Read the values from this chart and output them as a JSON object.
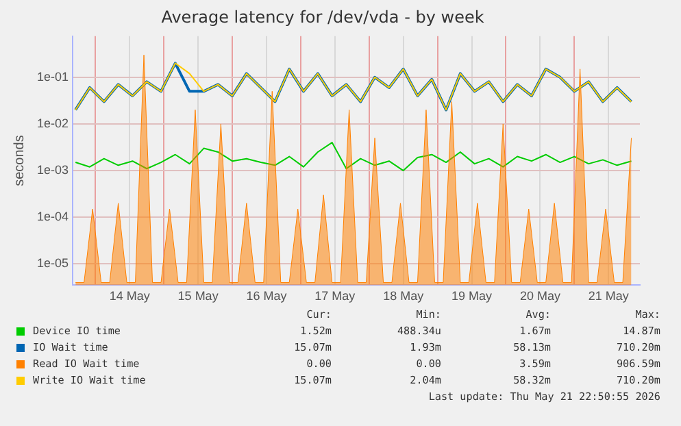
{
  "chart_data": {
    "type": "line",
    "title": "Average latency for /dev/vda - by week",
    "ylabel": "seconds",
    "log": "y",
    "grid": true,
    "legend": "bottom",
    "marker": "none",
    "line_style": "solid",
    "ylim": [
      3.5e-06,
      0.76
    ],
    "yticks": [
      {
        "value": 1e-05,
        "label": "1e-05"
      },
      {
        "value": 0.0001,
        "label": "1e-04"
      },
      {
        "value": 0.001,
        "label": "1e-03"
      },
      {
        "value": 0.01,
        "label": "1e-02"
      },
      {
        "value": 0.1,
        "label": "1e-01"
      }
    ],
    "xlim": [
      "2026-05-13T16:00",
      "2026-05-21T23:00"
    ],
    "xticks": [
      {
        "value": "2026-05-14T00:00",
        "label": null
      },
      {
        "value": "2026-05-14T12:00",
        "label": "14 May"
      },
      {
        "value": "2026-05-15T00:00",
        "label": null
      },
      {
        "value": "2026-05-15T12:00",
        "label": "15 May"
      },
      {
        "value": "2026-05-16T00:00",
        "label": null
      },
      {
        "value": "2026-05-16T12:00",
        "label": "16 May"
      },
      {
        "value": "2026-05-17T00:00",
        "label": null
      },
      {
        "value": "2026-05-17T12:00",
        "label": "17 May"
      },
      {
        "value": "2026-05-18T00:00",
        "label": null
      },
      {
        "value": "2026-05-18T12:00",
        "label": "18 May"
      },
      {
        "value": "2026-05-19T00:00",
        "label": null
      },
      {
        "value": "2026-05-19T12:00",
        "label": "19 May"
      },
      {
        "value": "2026-05-20T00:00",
        "label": null
      },
      {
        "value": "2026-05-20T12:00",
        "label": "20 May"
      },
      {
        "value": "2026-05-21T00:00",
        "label": null
      },
      {
        "value": "2026-05-21T12:00",
        "label": "21 May"
      }
    ],
    "x": [
      "2026-05-13T17:00",
      "2026-05-13T22:00",
      "2026-05-14T03:00",
      "2026-05-14T08:00",
      "2026-05-14T13:00",
      "2026-05-14T18:00",
      "2026-05-14T23:00",
      "2026-05-15T04:00",
      "2026-05-15T09:00",
      "2026-05-15T14:00",
      "2026-05-15T19:00",
      "2026-05-16T00:00",
      "2026-05-16T05:00",
      "2026-05-16T10:00",
      "2026-05-16T15:00",
      "2026-05-16T20:00",
      "2026-05-17T01:00",
      "2026-05-17T06:00",
      "2026-05-17T11:00",
      "2026-05-17T16:00",
      "2026-05-17T21:00",
      "2026-05-18T02:00",
      "2026-05-18T07:00",
      "2026-05-18T12:00",
      "2026-05-18T17:00",
      "2026-05-18T22:00",
      "2026-05-19T03:00",
      "2026-05-19T08:00",
      "2026-05-19T13:00",
      "2026-05-19T18:00",
      "2026-05-19T23:00",
      "2026-05-20T04:00",
      "2026-05-20T09:00",
      "2026-05-20T14:00",
      "2026-05-20T19:00",
      "2026-05-21T00:00",
      "2026-05-21T05:00",
      "2026-05-21T10:00",
      "2026-05-21T15:00",
      "2026-05-21T20:00"
    ],
    "series": [
      {
        "name": "Device IO time",
        "color": "#00cc00",
        "values": [
          0.0015,
          0.0012,
          0.0018,
          0.0013,
          0.0016,
          0.0011,
          0.0015,
          0.0022,
          0.0014,
          0.003,
          0.0025,
          0.0016,
          0.0018,
          0.0015,
          0.0013,
          0.002,
          0.0012,
          0.0025,
          0.004,
          0.0011,
          0.0018,
          0.0013,
          0.0016,
          0.001,
          0.0019,
          0.0022,
          0.0015,
          0.0025,
          0.0014,
          0.0018,
          0.0012,
          0.002,
          0.0016,
          0.0022,
          0.0015,
          0.002,
          0.0014,
          0.0017,
          0.0013,
          0.0016
        ]
      },
      {
        "name": "IO Wait time",
        "color": "#0066b3",
        "values": [
          0.02,
          0.06,
          0.03,
          0.07,
          0.04,
          0.08,
          0.05,
          0.2,
          0.05,
          0.05,
          0.07,
          0.04,
          0.12,
          0.06,
          0.03,
          0.15,
          0.05,
          0.12,
          0.04,
          0.07,
          0.03,
          0.1,
          0.06,
          0.15,
          0.04,
          0.09,
          0.02,
          0.12,
          0.05,
          0.08,
          0.03,
          0.07,
          0.04,
          0.15,
          0.1,
          0.05,
          0.08,
          0.03,
          0.06,
          0.03
        ]
      },
      {
        "name": "Read IO Wait time",
        "color": "#ff8000",
        "type": "area",
        "x": [
          "2026-05-13T17:00",
          "2026-05-13T20:00",
          "2026-05-13T23:00",
          "2026-05-14T02:00",
          "2026-05-14T05:00",
          "2026-05-14T08:00",
          "2026-05-14T11:00",
          "2026-05-14T14:00",
          "2026-05-14T17:00",
          "2026-05-14T20:00",
          "2026-05-14T23:00",
          "2026-05-15T02:00",
          "2026-05-15T05:00",
          "2026-05-15T08:00",
          "2026-05-15T11:00",
          "2026-05-15T14:00",
          "2026-05-15T17:00",
          "2026-05-15T20:00",
          "2026-05-15T23:00",
          "2026-05-16T02:00",
          "2026-05-16T05:00",
          "2026-05-16T08:00",
          "2026-05-16T11:00",
          "2026-05-16T14:00",
          "2026-05-16T17:00",
          "2026-05-16T20:00",
          "2026-05-16T23:00",
          "2026-05-17T02:00",
          "2026-05-17T05:00",
          "2026-05-17T08:00",
          "2026-05-17T11:00",
          "2026-05-17T14:00",
          "2026-05-17T17:00",
          "2026-05-17T20:00",
          "2026-05-17T23:00",
          "2026-05-18T02:00",
          "2026-05-18T05:00",
          "2026-05-18T08:00",
          "2026-05-18T11:00",
          "2026-05-18T14:00",
          "2026-05-18T17:00",
          "2026-05-18T20:00",
          "2026-05-18T23:00",
          "2026-05-19T02:00",
          "2026-05-19T05:00",
          "2026-05-19T08:00",
          "2026-05-19T11:00",
          "2026-05-19T14:00",
          "2026-05-19T17:00",
          "2026-05-19T20:00",
          "2026-05-19T23:00",
          "2026-05-20T02:00",
          "2026-05-20T05:00",
          "2026-05-20T08:00",
          "2026-05-20T11:00",
          "2026-05-20T14:00",
          "2026-05-20T17:00",
          "2026-05-20T20:00",
          "2026-05-20T23:00",
          "2026-05-21T02:00",
          "2026-05-21T05:00",
          "2026-05-21T08:00",
          "2026-05-21T11:00",
          "2026-05-21T14:00",
          "2026-05-21T17:00",
          "2026-05-21T20:00"
        ],
        "values": [
          4e-06,
          4e-06,
          0.00015,
          4e-06,
          4e-06,
          0.0002,
          4e-06,
          4e-06,
          0.3,
          4e-06,
          4e-06,
          0.00015,
          4e-06,
          4e-06,
          0.02,
          4e-06,
          4e-06,
          0.01,
          4e-06,
          4e-06,
          0.0002,
          4e-06,
          4e-06,
          0.05,
          4e-06,
          4e-06,
          0.00015,
          4e-06,
          4e-06,
          0.0003,
          4e-06,
          4e-06,
          0.02,
          4e-06,
          4e-06,
          0.005,
          4e-06,
          4e-06,
          0.0002,
          4e-06,
          4e-06,
          0.02,
          4e-06,
          4e-06,
          0.03,
          4e-06,
          4e-06,
          0.0002,
          4e-06,
          4e-06,
          0.01,
          4e-06,
          4e-06,
          0.00015,
          4e-06,
          4e-06,
          0.0002,
          4e-06,
          4e-06,
          0.15,
          4e-06,
          4e-06,
          0.00015,
          4e-06,
          4e-06,
          0.005
        ]
      },
      {
        "name": "Write IO Wait time",
        "color": "#ffcc00",
        "values": [
          0.02,
          0.06,
          0.03,
          0.07,
          0.04,
          0.08,
          0.05,
          0.2,
          0.12,
          0.05,
          0.07,
          0.04,
          0.12,
          0.06,
          0.03,
          0.15,
          0.05,
          0.12,
          0.04,
          0.07,
          0.03,
          0.1,
          0.06,
          0.15,
          0.04,
          0.09,
          0.02,
          0.12,
          0.05,
          0.08,
          0.03,
          0.07,
          0.04,
          0.15,
          0.1,
          0.05,
          0.08,
          0.03,
          0.06,
          0.03
        ]
      }
    ],
    "annotations": [
      "Cur:",
      "Min:",
      "Avg:",
      "Max:",
      "1.52m",
      "488.34u",
      "1.67m",
      "14.87m",
      "15.07m",
      "1.93m",
      "58.13m",
      "710.20m",
      "0.00",
      "0.00",
      "3.59m",
      "906.59m",
      "15.07m",
      "2.04m",
      "58.32m",
      "710.20m",
      "Last update: Thu May 21 22:50:55 2026"
    ]
  }
}
